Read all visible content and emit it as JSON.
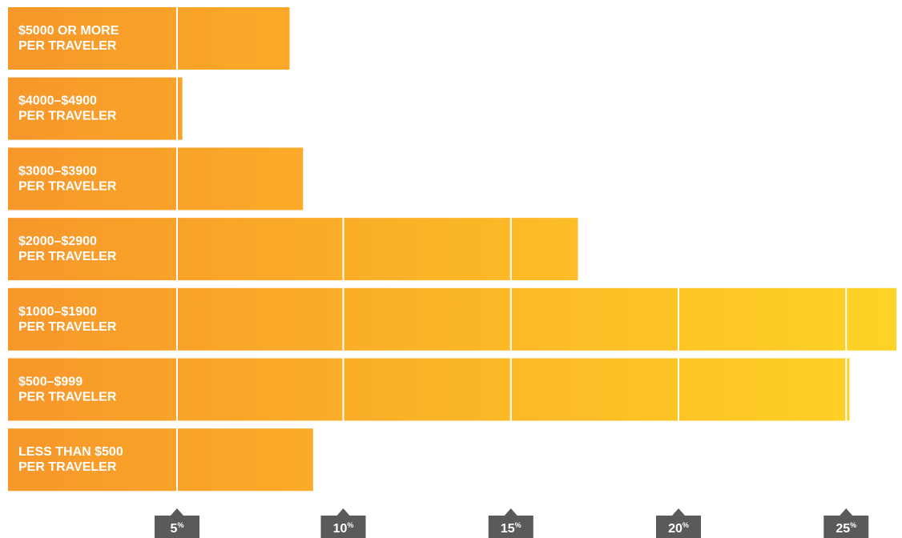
{
  "chart_data": {
    "type": "bar",
    "orientation": "horizontal",
    "categories": [
      [
        "$5000 OR MORE",
        "PER TRAVELER"
      ],
      [
        "$4000–$4900",
        "PER TRAVELER"
      ],
      [
        "$3000–$3900",
        "PER TRAVELER"
      ],
      [
        "$2000–$2900",
        "PER TRAVELER"
      ],
      [
        "$1000–$1900",
        "PER TRAVELER"
      ],
      [
        "$500–$999",
        "PER TRAVELER"
      ],
      [
        "LESS THAN $500",
        "PER TRAVELER"
      ]
    ],
    "values": [
      8.4,
      5.2,
      8.8,
      17.0,
      26.5,
      25.1,
      9.1
    ],
    "xlim": [
      0,
      26.5
    ],
    "xticks": [
      5,
      10,
      15,
      20,
      25
    ],
    "tick_unit": "%",
    "grid": true,
    "colors": {
      "bar_start": "#F7972A",
      "bar_end": "#FFD325",
      "tick_box": "#5a5a5a",
      "divider": "#ffffff",
      "label": "#ffffff"
    }
  }
}
